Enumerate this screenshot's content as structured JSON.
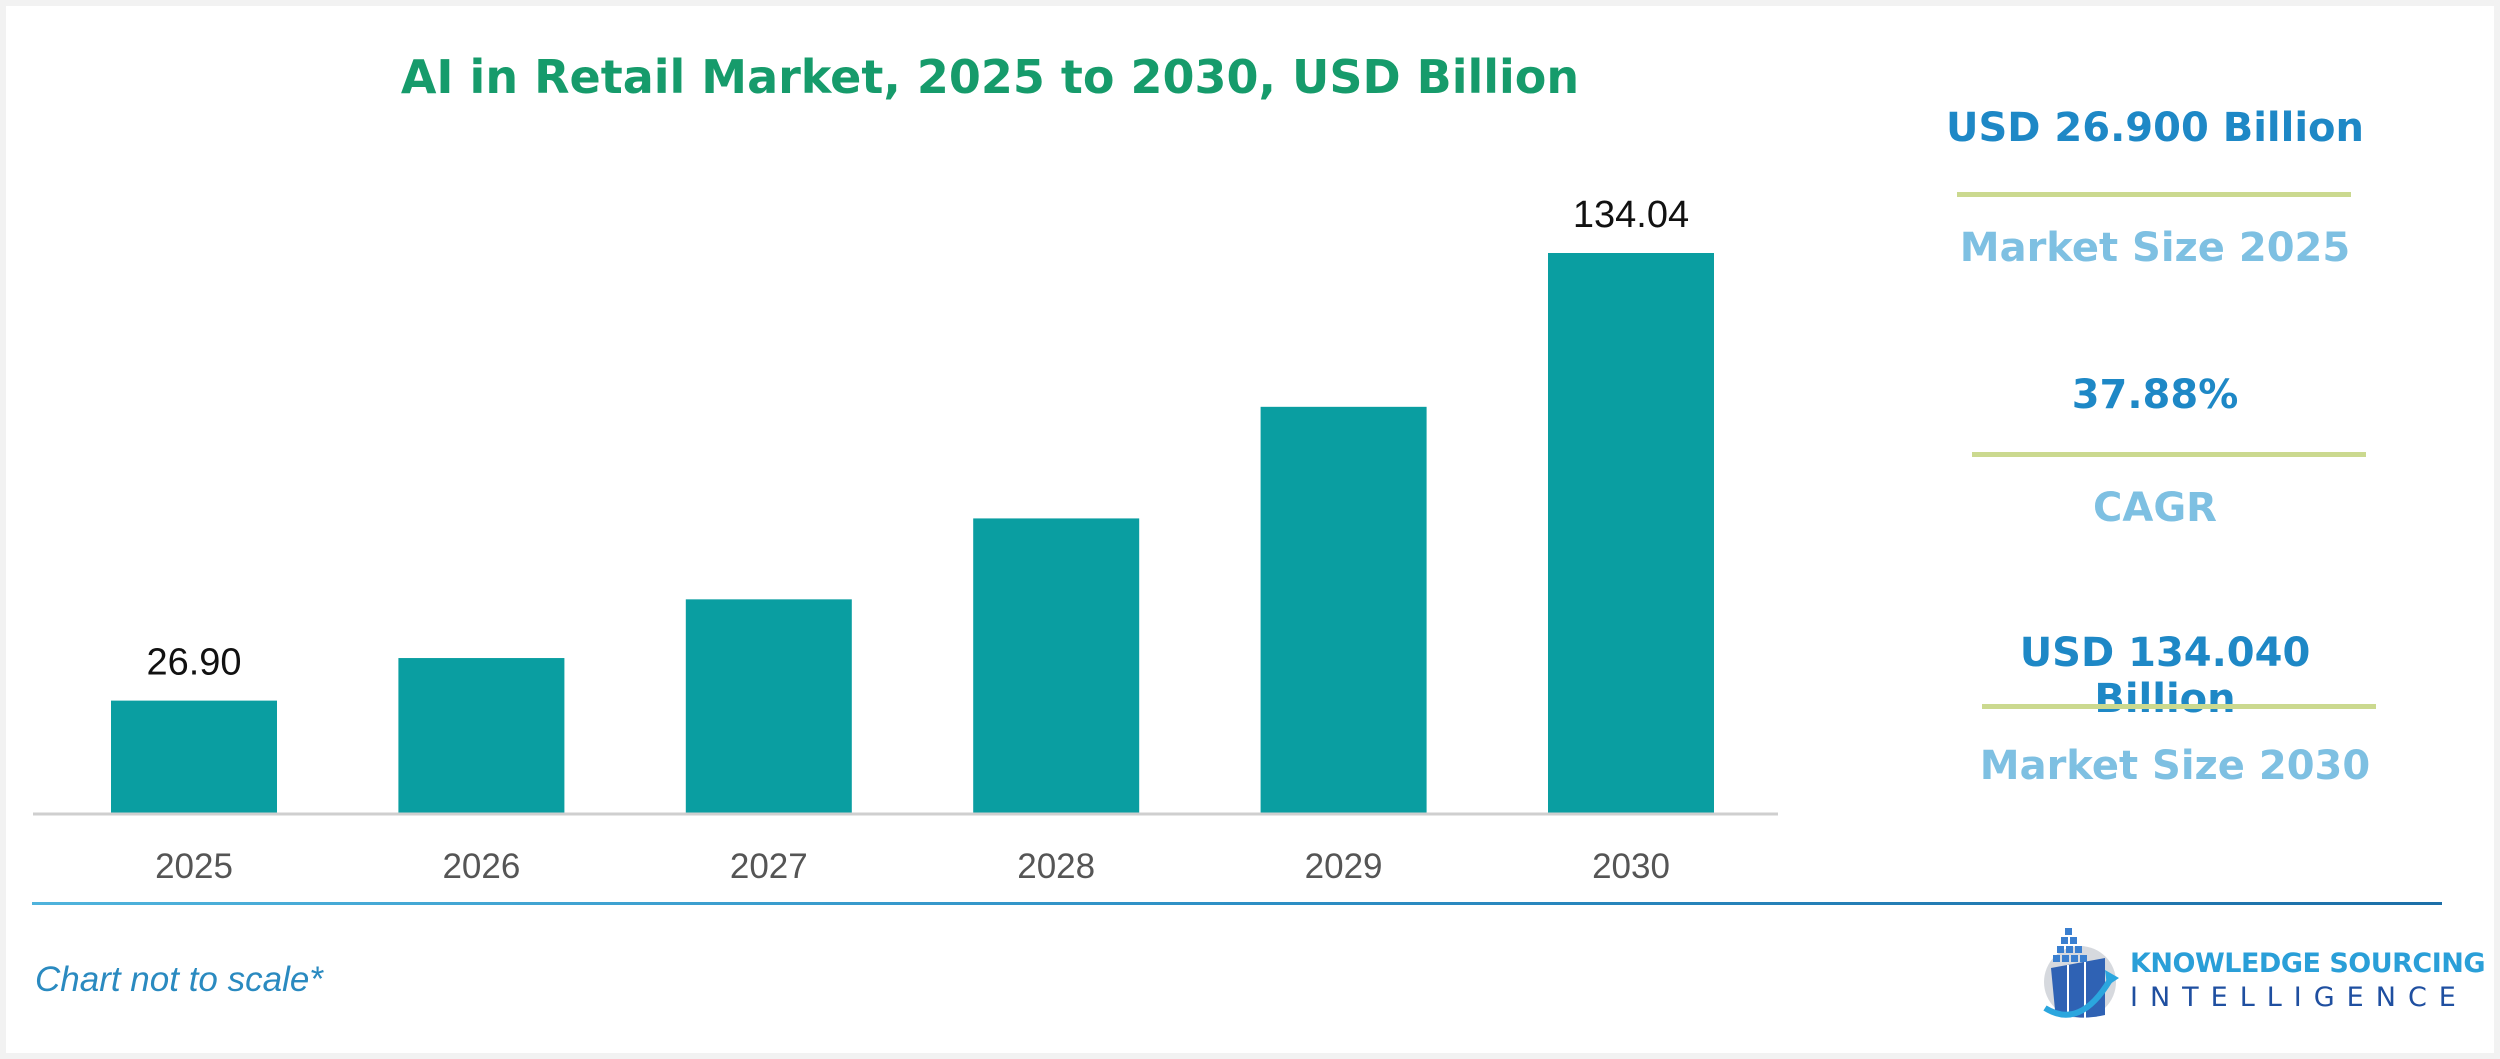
{
  "chart_data": {
    "type": "bar",
    "title": "AI in Retail Market, 2025 to 2030, USD Billion",
    "categories": [
      "2025",
      "2026",
      "2027",
      "2028",
      "2029",
      "2030"
    ],
    "values": [
      26.9,
      37.09,
      51.14,
      70.51,
      97.22,
      134.04
    ],
    "data_labels": {
      "0": "26.90",
      "5": "134.04"
    },
    "xlabel": "",
    "ylabel": "",
    "ylim": [
      0,
      134.04
    ],
    "grid": false,
    "bar_color": "#0a9ea1"
  },
  "summary": {
    "market_2025_value": "USD 26.900 Billion",
    "market_2025_label": "Market Size 2025",
    "cagr_value": "37.88%",
    "cagr_label": "CAGR",
    "market_2030_value": "USD 134.040 Billion",
    "market_2030_label": "Market Size 2030"
  },
  "footer": {
    "note": "Chart not to scale*",
    "logo_line1": "KNOWLEDGE SOURCING",
    "logo_line2": "INTELLIGENCE"
  },
  "colors": {
    "title": "#169b6b",
    "value": "#1e88c6",
    "label": "#7ec0e2",
    "separator": "#cbd98f"
  }
}
